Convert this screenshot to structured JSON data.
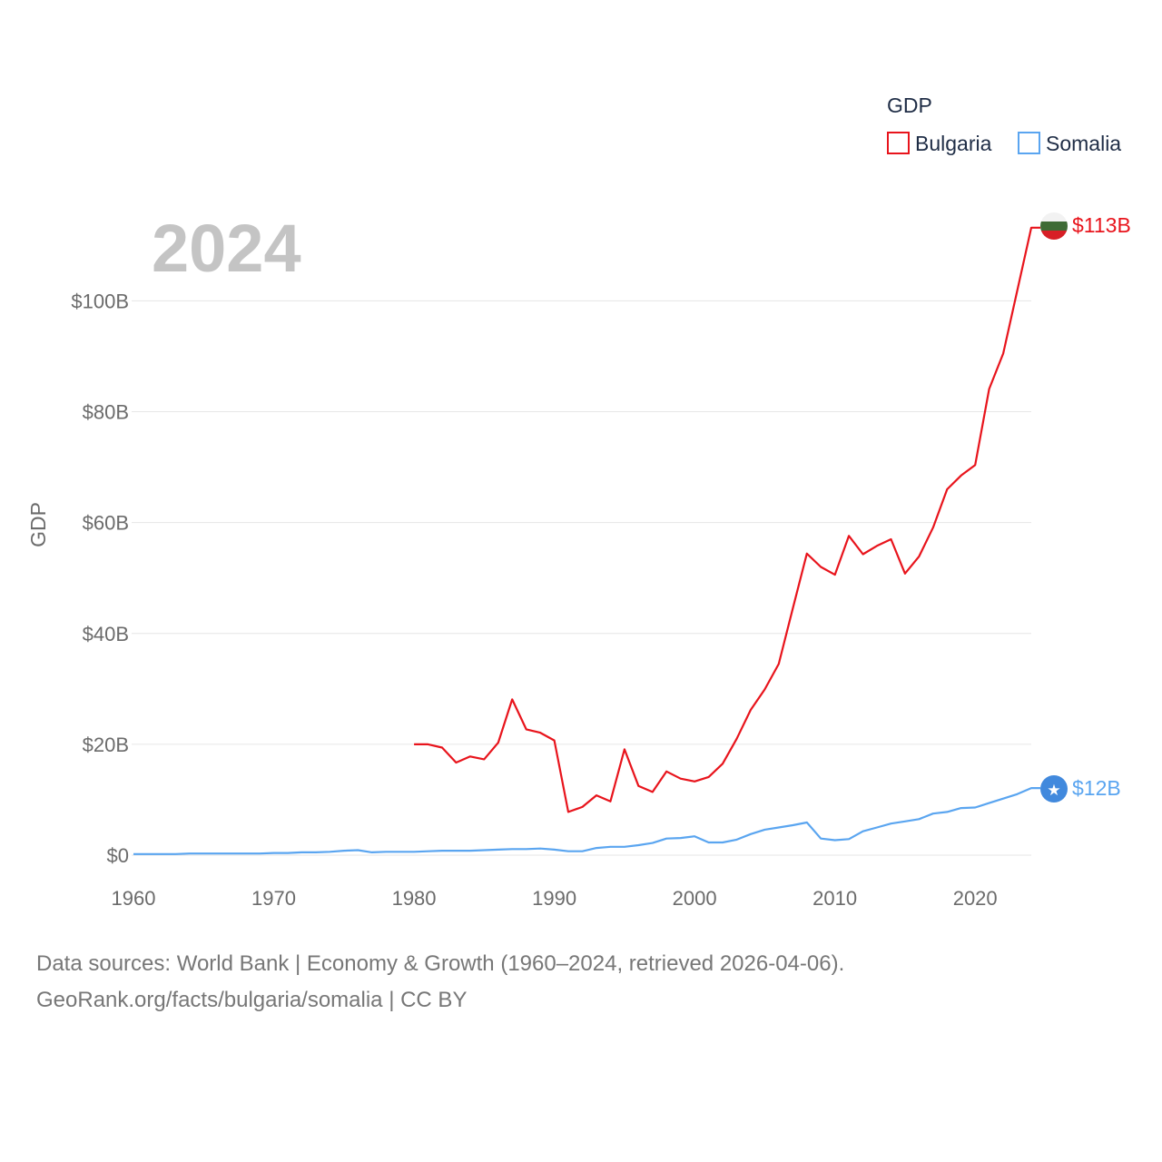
{
  "chart_data": {
    "type": "line",
    "title": "GDP",
    "year_label": "2024",
    "ylabel": "GDP",
    "xlabel": "",
    "xlim": [
      1960,
      2024
    ],
    "ylim": [
      0,
      113.5
    ],
    "x_ticks": [
      "1960",
      "1970",
      "1980",
      "1990",
      "2000",
      "2010",
      "2020"
    ],
    "y_ticks": [
      {
        "value": 0,
        "label": "$0"
      },
      {
        "value": 20,
        "label": "$20B"
      },
      {
        "value": 40,
        "label": "$40B"
      },
      {
        "value": 60,
        "label": "$60B"
      },
      {
        "value": 80,
        "label": "$80B"
      },
      {
        "value": 100,
        "label": "$100B"
      }
    ],
    "grid": true,
    "legend_position": "top-right",
    "series": [
      {
        "name": "Bulgaria",
        "color": "#e8141c",
        "end_label": "$113B",
        "flag_icon": "bulgaria-flag-icon",
        "x": [
          1980,
          1981,
          1982,
          1983,
          1984,
          1985,
          1986,
          1987,
          1988,
          1989,
          1990,
          1991,
          1992,
          1993,
          1994,
          1995,
          1996,
          1997,
          1998,
          1999,
          2000,
          2001,
          2002,
          2003,
          2004,
          2005,
          2006,
          2007,
          2008,
          2009,
          2010,
          2011,
          2012,
          2013,
          2014,
          2015,
          2016,
          2017,
          2018,
          2019,
          2020,
          2021,
          2022,
          2023,
          2024
        ],
        "values": [
          20.0,
          20.0,
          19.4,
          16.7,
          17.8,
          17.3,
          20.3,
          28.1,
          22.7,
          22.1,
          20.7,
          7.8,
          8.7,
          10.8,
          9.7,
          19.1,
          12.5,
          11.4,
          15.1,
          13.8,
          13.3,
          14.1,
          16.5,
          21.0,
          26.2,
          29.9,
          34.5,
          44.5,
          54.4,
          52.0,
          50.6,
          57.6,
          54.3,
          55.8,
          57.0,
          50.8,
          53.9,
          59.1,
          66.0,
          68.5,
          70.4,
          84.1,
          90.5,
          101.8,
          113.2
        ]
      },
      {
        "name": "Somalia",
        "color": "#5aa5f0",
        "end_label": "$12B",
        "flag_icon": "somalia-flag-icon",
        "x": [
          1960,
          1961,
          1962,
          1963,
          1964,
          1965,
          1966,
          1967,
          1968,
          1969,
          1970,
          1971,
          1972,
          1973,
          1974,
          1975,
          1976,
          1977,
          1978,
          1979,
          1980,
          1981,
          1982,
          1983,
          1984,
          1985,
          1986,
          1987,
          1988,
          1989,
          1990,
          1991,
          1992,
          1993,
          1994,
          1995,
          1996,
          1997,
          1998,
          1999,
          2000,
          2001,
          2002,
          2003,
          2004,
          2005,
          2006,
          2007,
          2008,
          2009,
          2010,
          2011,
          2012,
          2013,
          2014,
          2015,
          2016,
          2017,
          2018,
          2019,
          2020,
          2021,
          2022,
          2023,
          2024
        ],
        "values": [
          0.2,
          0.2,
          0.2,
          0.2,
          0.3,
          0.3,
          0.3,
          0.3,
          0.3,
          0.3,
          0.4,
          0.4,
          0.5,
          0.5,
          0.6,
          0.8,
          0.9,
          0.5,
          0.6,
          0.6,
          0.6,
          0.7,
          0.8,
          0.8,
          0.8,
          0.9,
          1.0,
          1.1,
          1.1,
          1.2,
          1.0,
          0.7,
          0.7,
          1.3,
          1.5,
          1.5,
          1.8,
          2.2,
          3.0,
          3.1,
          3.4,
          2.3,
          2.3,
          2.8,
          3.8,
          4.6,
          5.0,
          5.4,
          5.9,
          3.0,
          2.7,
          2.9,
          4.3,
          5.0,
          5.7,
          6.1,
          6.5,
          7.5,
          7.8,
          8.5,
          8.6,
          9.4,
          10.2,
          11.0,
          12.1
        ]
      }
    ]
  },
  "footer": {
    "line1": "Data sources: World Bank | Economy & Growth (1960–2024, retrieved 2026-04-06).",
    "line2": "GeoRank.org/facts/bulgaria/somalia | CC BY"
  }
}
